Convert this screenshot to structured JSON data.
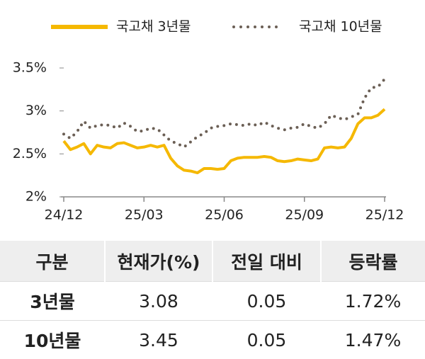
{
  "chart_data": {
    "type": "line",
    "categories": [
      "24/12",
      null,
      null,
      null,
      null,
      null,
      null,
      null,
      null,
      null,
      null,
      null,
      "25/03",
      null,
      null,
      null,
      null,
      null,
      null,
      null,
      null,
      null,
      null,
      null,
      "25/06",
      null,
      null,
      null,
      null,
      null,
      null,
      null,
      null,
      null,
      null,
      null,
      "25/09",
      null,
      null,
      null,
      null,
      null,
      null,
      null,
      null,
      null,
      null,
      null,
      "25/12"
    ],
    "series": [
      {
        "name": "국고채 3년물",
        "color": "#f5b800",
        "style": "solid",
        "values": [
          2.65,
          2.55,
          2.58,
          2.62,
          2.5,
          2.6,
          2.58,
          2.57,
          2.62,
          2.63,
          2.6,
          2.57,
          2.58,
          2.6,
          2.58,
          2.6,
          2.45,
          2.36,
          2.31,
          2.3,
          2.28,
          2.33,
          2.33,
          2.32,
          2.33,
          2.42,
          2.45,
          2.46,
          2.46,
          2.46,
          2.47,
          2.46,
          2.42,
          2.41,
          2.42,
          2.44,
          2.43,
          2.42,
          2.44,
          2.57,
          2.58,
          2.57,
          2.58,
          2.68,
          2.85,
          2.92,
          2.92,
          2.95,
          3.02
        ]
      },
      {
        "name": "국고채 10년물",
        "color": "#6b5f55",
        "style": "dotted",
        "values": [
          2.73,
          2.68,
          2.76,
          2.88,
          2.8,
          2.83,
          2.84,
          2.83,
          2.8,
          2.86,
          2.82,
          2.76,
          2.77,
          2.8,
          2.79,
          2.72,
          2.65,
          2.62,
          2.58,
          2.64,
          2.7,
          2.74,
          2.8,
          2.82,
          2.83,
          2.85,
          2.84,
          2.83,
          2.85,
          2.83,
          2.87,
          2.83,
          2.8,
          2.78,
          2.8,
          2.81,
          2.85,
          2.82,
          2.8,
          2.85,
          2.95,
          2.92,
          2.9,
          2.93,
          2.96,
          3.15,
          3.27,
          3.28,
          3.37
        ]
      }
    ],
    "ylim": [
      2,
      3.5
    ],
    "yticks": [
      {
        "value": 2,
        "label": "2%"
      },
      {
        "value": 2.5,
        "label": "2.5%"
      },
      {
        "value": 3,
        "label": "3%"
      },
      {
        "value": 3.5,
        "label": "3.5%"
      }
    ],
    "grid": false,
    "legend": "top"
  },
  "table": {
    "header": [
      "구분",
      "현재가(%)",
      "전일 대비",
      "등락률"
    ],
    "rows": [
      [
        "3년물",
        "3.08",
        "0.05",
        "1.72%"
      ],
      [
        "10년물",
        "3.45",
        "0.05",
        "1.47%"
      ]
    ]
  }
}
